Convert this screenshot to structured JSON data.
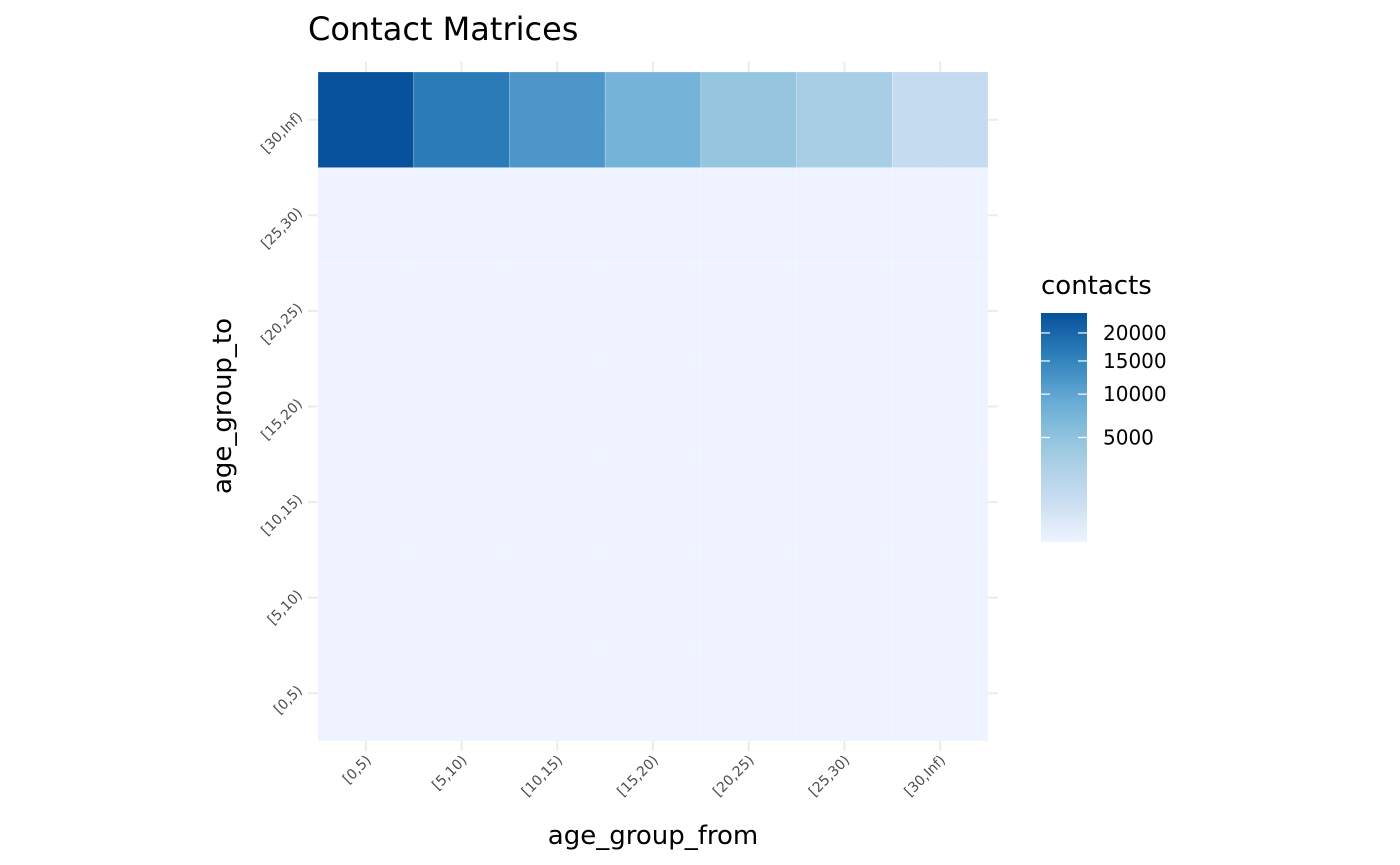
{
  "chart_data": {
    "type": "heatmap",
    "title": "Contact Matrices",
    "xlabel": "age_group_from",
    "ylabel": "age_group_to",
    "x_categories": [
      "[0,5)",
      "[5,10)",
      "[10,15)",
      "[15,20)",
      "[20,25)",
      "[25,30)",
      "[30,Inf)"
    ],
    "y_categories": [
      "[0,5)",
      "[5,10)",
      "[10,15)",
      "[15,20)",
      "[20,25)",
      "[25,30)",
      "[30,Inf)"
    ],
    "values": [
      [
        0,
        0,
        0,
        0,
        0,
        0,
        0
      ],
      [
        0,
        0,
        0,
        0,
        0,
        0,
        0
      ],
      [
        0,
        0,
        0,
        0,
        0,
        0,
        0
      ],
      [
        0,
        0,
        0,
        0,
        0,
        0,
        0
      ],
      [
        0,
        0,
        0,
        0,
        0,
        0,
        0
      ],
      [
        0,
        0,
        0,
        0,
        0,
        0,
        0
      ],
      [
        24000,
        16500,
        12000,
        7500,
        4500,
        3000,
        1000
      ]
    ],
    "legend": {
      "title": "contacts",
      "breaks": [
        20000,
        15000,
        10000,
        5000
      ],
      "labels": [
        "20000",
        "15000",
        "10000",
        "5000"
      ],
      "range": [
        0,
        24000
      ],
      "scale": "sqrt",
      "placement": "right"
    },
    "colors": [
      "#eef3ff",
      "#c6dbef",
      "#9ecae1",
      "#6baed6",
      "#3182bd",
      "#08519c"
    ],
    "grid": true
  }
}
